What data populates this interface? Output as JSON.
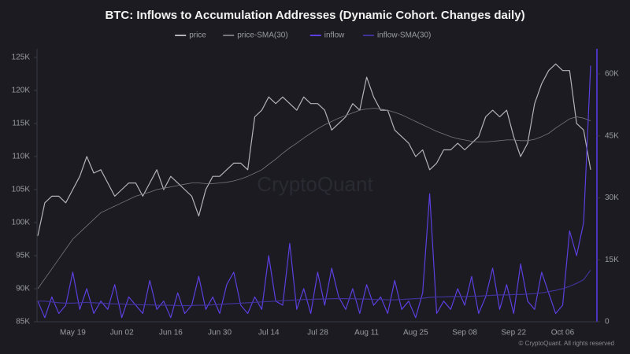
{
  "chart_data": {
    "type": "line",
    "title": "BTC: Inflows to Accumulation Addresses (Dynamic Cohort. Changes daily)",
    "watermark": "CryptoQuant",
    "copyright": "© CryptoQuant. All rights reserved",
    "categories": [
      null,
      null,
      null,
      null,
      null,
      "May 19",
      null,
      null,
      null,
      null,
      null,
      null,
      "Jun 02",
      null,
      null,
      null,
      null,
      null,
      null,
      "Jun 16",
      null,
      null,
      null,
      null,
      null,
      null,
      "Jun 30",
      null,
      null,
      null,
      null,
      null,
      null,
      "Jul 14",
      null,
      null,
      null,
      null,
      null,
      null,
      "Jul 28",
      null,
      null,
      null,
      null,
      null,
      null,
      "Aug 11",
      null,
      null,
      null,
      null,
      null,
      null,
      "Aug 25",
      null,
      null,
      null,
      null,
      null,
      null,
      "Sep 08",
      null,
      null,
      null,
      null,
      null,
      null,
      "Sep 22",
      null,
      null,
      null,
      null,
      null,
      null,
      "Oct 06",
      null,
      null,
      null,
      null
    ],
    "series": [
      {
        "name": "price",
        "color": "#b4b4b8",
        "width": 1.2,
        "values": [
          98000,
          103000,
          104000,
          104000,
          103000,
          105000,
          107000,
          110000,
          107500,
          108000,
          106000,
          104000,
          105000,
          106000,
          106000,
          104000,
          106000,
          108000,
          105000,
          107000,
          106000,
          105000,
          104000,
          101000,
          105000,
          107000,
          107000,
          108000,
          109000,
          109000,
          108000,
          116000,
          117000,
          119000,
          118000,
          119000,
          118000,
          117000,
          119000,
          118000,
          118000,
          117000,
          114000,
          115000,
          116000,
          118000,
          117000,
          122000,
          119000,
          117000,
          117000,
          114000,
          113000,
          112000,
          110000,
          111000,
          108000,
          109000,
          111000,
          111000,
          112000,
          111000,
          112000,
          113000,
          116000,
          117000,
          116000,
          117000,
          113000,
          110000,
          112000,
          118000,
          121000,
          123000,
          124000,
          123000,
          123000,
          115000,
          114000,
          108000
        ]
      },
      {
        "name": "price-SMA(30)",
        "color": "#77777c",
        "width": 0.8,
        "values": [
          90000,
          91500,
          93000,
          94500,
          96000,
          97500,
          98500,
          99500,
          100500,
          101500,
          102000,
          102500,
          103000,
          103500,
          104000,
          104300,
          104600,
          105000,
          105200,
          105400,
          105600,
          105800,
          106000,
          106000,
          105900,
          105900,
          106000,
          106100,
          106300,
          106600,
          107000,
          107500,
          108000,
          108800,
          109600,
          110500,
          111300,
          112000,
          112800,
          113500,
          114200,
          114800,
          115300,
          115800,
          116200,
          116600,
          117000,
          117200,
          117300,
          117200,
          117000,
          116700,
          116300,
          115800,
          115300,
          114800,
          114300,
          113800,
          113400,
          113000,
          112700,
          112500,
          112300,
          112200,
          112200,
          112300,
          112400,
          112500,
          112500,
          112400,
          112400,
          112600,
          113000,
          113500,
          114300,
          115000,
          115700,
          116000,
          115800,
          115400
        ]
      },
      {
        "name": "inflow",
        "color": "#5d3fe0",
        "width": 1.2,
        "axis": "y2",
        "values": [
          5000,
          1000,
          6000,
          2000,
          4000,
          12000,
          3000,
          8000,
          2000,
          5000,
          3000,
          9000,
          1000,
          6000,
          4000,
          2000,
          10000,
          3000,
          5000,
          1000,
          7000,
          2000,
          4000,
          11000,
          3000,
          6000,
          2000,
          9000,
          12000,
          4000,
          2000,
          6000,
          3000,
          16000,
          5000,
          4000,
          19000,
          3000,
          8000,
          2000,
          12000,
          4000,
          13000,
          6000,
          3000,
          8000,
          2000,
          9000,
          4000,
          6000,
          2000,
          10000,
          3000,
          5000,
          1000,
          7000,
          31000,
          2000,
          5000,
          3000,
          8000,
          4000,
          11000,
          2000,
          6000,
          13000,
          3000,
          9000,
          2000,
          14000,
          5000,
          3000,
          12000,
          7000,
          2000,
          4000,
          22000,
          16000,
          24000,
          62000
        ]
      },
      {
        "name": "inflow-SMA(30)",
        "color": "#3f3296",
        "width": 1.2,
        "axis": "y2",
        "values": [
          5000,
          5000,
          4800,
          4600,
          4500,
          4500,
          4600,
          4700,
          4600,
          4500,
          4400,
          4300,
          4300,
          4200,
          4200,
          4100,
          4100,
          4000,
          4000,
          4000,
          3900,
          3900,
          3900,
          4000,
          4000,
          4100,
          4200,
          4300,
          4400,
          4500,
          4600,
          4700,
          4800,
          4900,
          5000,
          5100,
          5200,
          5300,
          5400,
          5400,
          5500,
          5500,
          5600,
          5600,
          5600,
          5600,
          5500,
          5500,
          5400,
          5400,
          5300,
          5300,
          5400,
          5500,
          5600,
          5700,
          5900,
          6000,
          6000,
          6100,
          6100,
          6100,
          6200,
          6200,
          6300,
          6400,
          6500,
          6500,
          6600,
          6600,
          6700,
          6800,
          7000,
          7300,
          7600,
          8000,
          8600,
          9300,
          10200,
          12500
        ]
      }
    ],
    "ylim": [
      85000,
      126300
    ],
    "yticks": [
      {
        "value": 85000,
        "label": "85K"
      },
      {
        "value": 90000,
        "label": "90K"
      },
      {
        "value": 95000,
        "label": "95K"
      },
      {
        "value": 100000,
        "label": "100K"
      },
      {
        "value": 105000,
        "label": "105K"
      },
      {
        "value": 110000,
        "label": "110K"
      },
      {
        "value": 115000,
        "label": "115K"
      },
      {
        "value": 120000,
        "label": "120K"
      },
      {
        "value": 125000,
        "label": "125K"
      }
    ],
    "y2lim": [
      0,
      66100
    ],
    "y2ticks": [
      0,
      {
        "value": 15000,
        "label": "15K"
      },
      {
        "value": 30000,
        "label": "30K"
      },
      {
        "value": 45000,
        "label": "45K"
      },
      {
        "value": 60000,
        "label": "60K"
      }
    ],
    "grid": false,
    "legend": "top"
  }
}
